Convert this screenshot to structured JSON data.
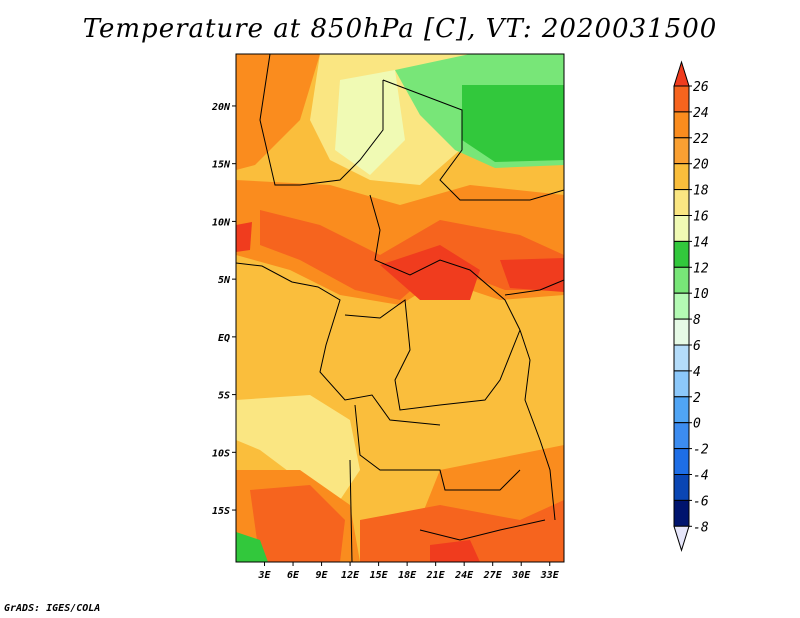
{
  "map": {
    "title": "Temperature at 850hPa [C], VT: 2020031500",
    "credit": "GrADS: IGES/COLA",
    "variable": "Temperature at 850hPa",
    "units": "C",
    "valid_time": "2020031500",
    "region": "Central and Southern Africa",
    "lat_range": [
      -19.5,
      24.5
    ],
    "lon_range": [
      0,
      34.5
    ],
    "lat_ticks": [
      {
        "value": 20,
        "label": "20N"
      },
      {
        "value": 15,
        "label": "15N"
      },
      {
        "value": 10,
        "label": "10N"
      },
      {
        "value": 5,
        "label": "5N"
      },
      {
        "value": 0,
        "label": "EQ"
      },
      {
        "value": -5,
        "label": "5S"
      },
      {
        "value": -10,
        "label": "10S"
      },
      {
        "value": -15,
        "label": "15S"
      }
    ],
    "lon_ticks": [
      {
        "value": 3,
        "label": "3E"
      },
      {
        "value": 6,
        "label": "6E"
      },
      {
        "value": 9,
        "label": "9E"
      },
      {
        "value": 12,
        "label": "12E"
      },
      {
        "value": 15,
        "label": "15E"
      },
      {
        "value": 18,
        "label": "18E"
      },
      {
        "value": 21,
        "label": "21E"
      },
      {
        "value": 24,
        "label": "24E"
      },
      {
        "value": 27,
        "label": "27E"
      },
      {
        "value": 30,
        "label": "30E"
      },
      {
        "value": 33,
        "label": "33E"
      }
    ]
  },
  "colorbar": {
    "labels": [
      "26",
      "24",
      "22",
      "20",
      "18",
      "16",
      "14",
      "12",
      "10",
      "8",
      "6",
      "4",
      "2",
      "0",
      "-2",
      "-4",
      "-6",
      "-8"
    ],
    "colors": [
      "#f03c1e",
      "#f6641e",
      "#fa8c1e",
      "#faa032",
      "#fabe3c",
      "#fae682",
      "#f0fab4",
      "#32c83c",
      "#78e678",
      "#b4fab4",
      "#e6fae6",
      "#b4dcfa",
      "#8cc8fa",
      "#50a5f5",
      "#3c8cf0",
      "#1e6ee6",
      "#0a46b4",
      "#00146e",
      "#e6e6fa"
    ]
  }
}
